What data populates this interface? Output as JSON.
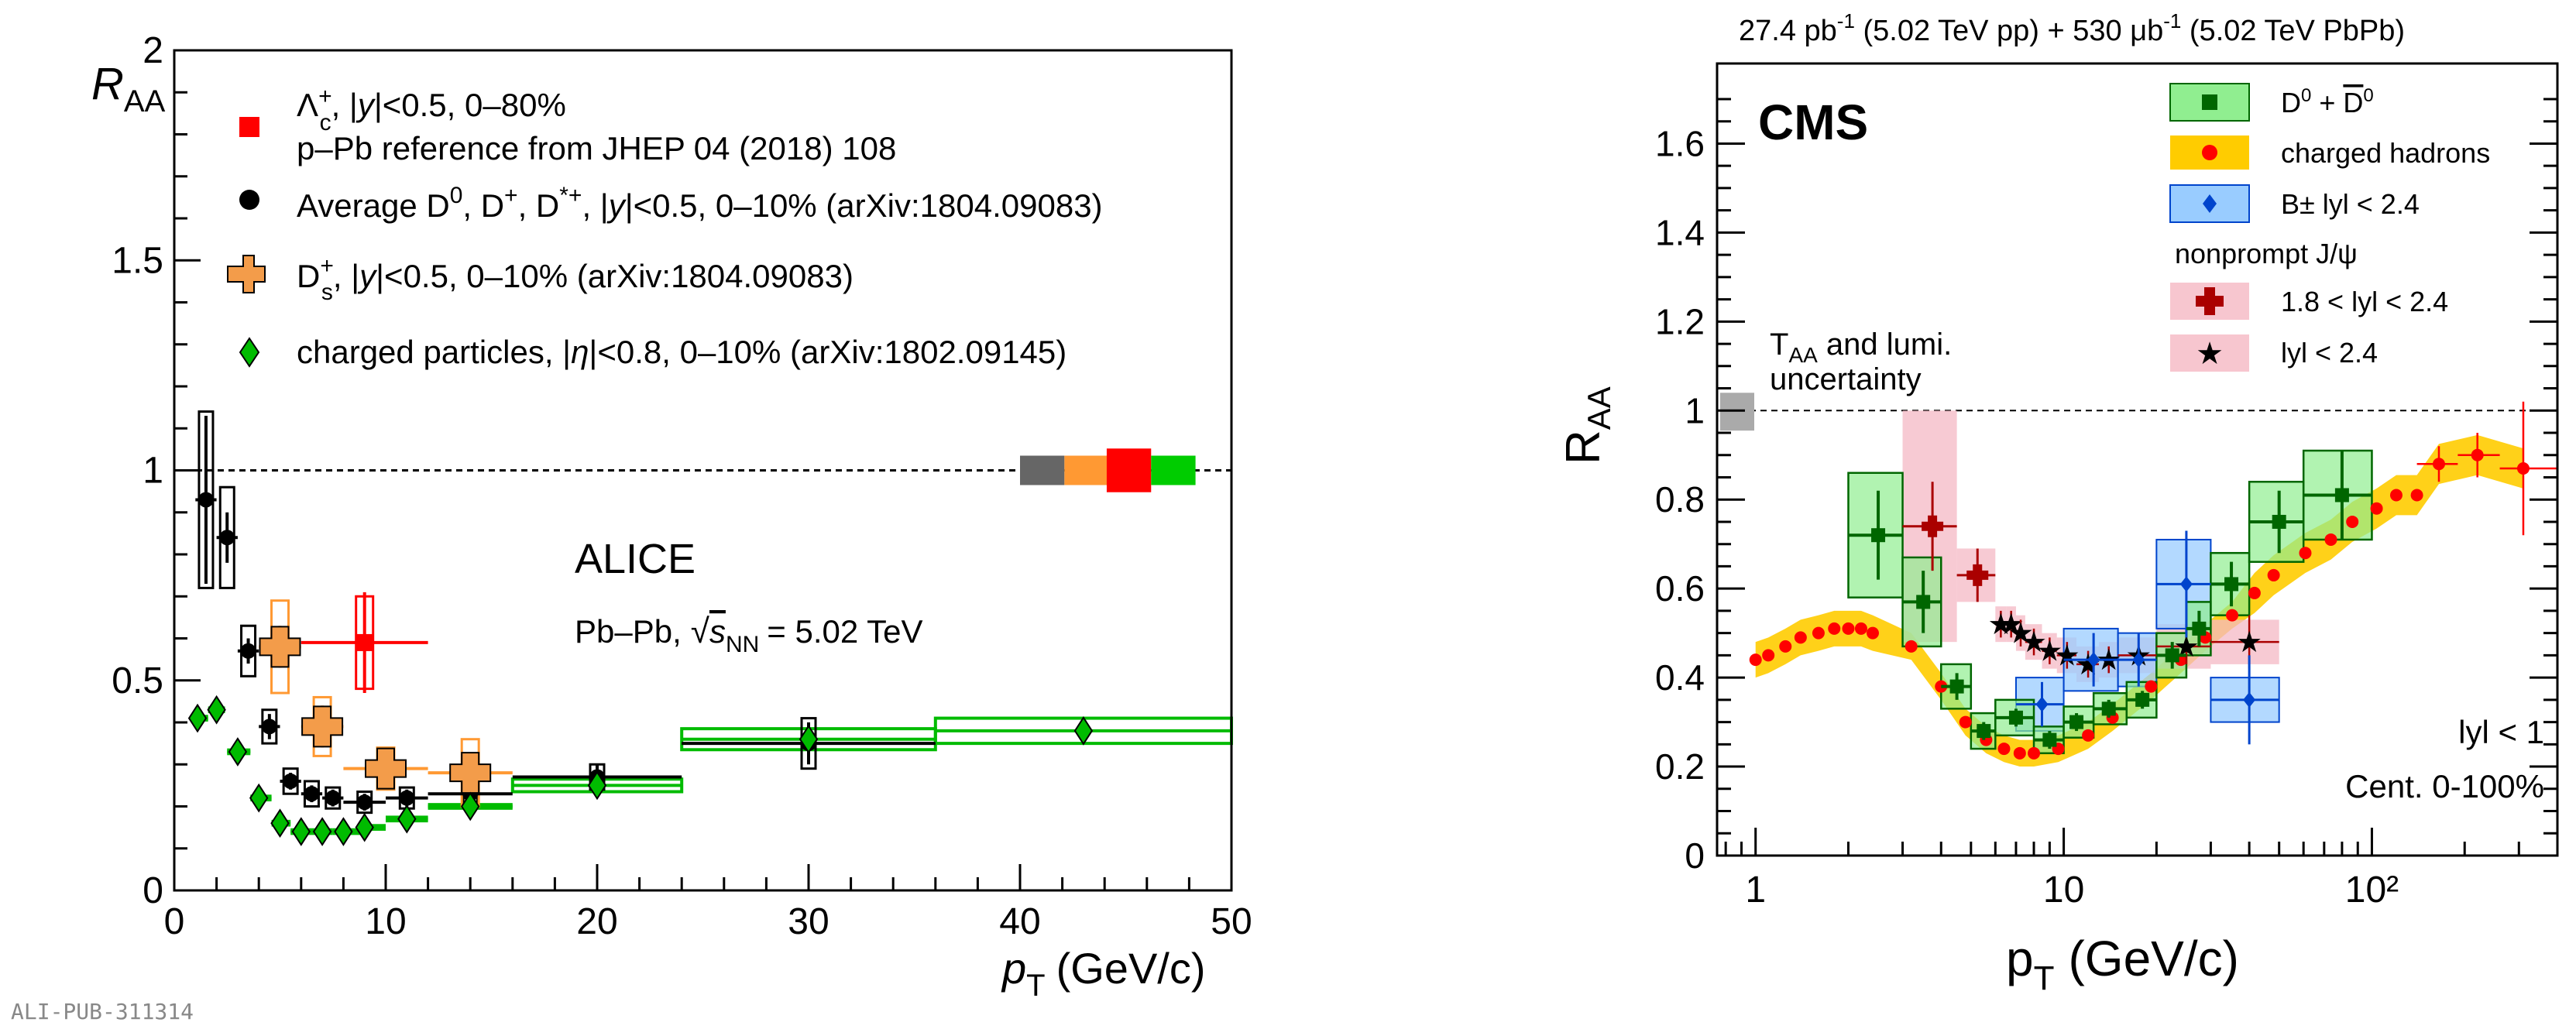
{
  "figure_note": "ALI-PUB-311314",
  "chart_data": [
    {
      "type": "scatter",
      "experiment": "ALICE",
      "system": "Pb–Pb,",
      "energy_prefix": "s",
      "energy_sub": "NN",
      "energy_suffix": "= 5.02 TeV",
      "xlabel": "p",
      "xlabel_sub": "T",
      "xlabel_unit": "(GeV/c)",
      "ylabel": "R",
      "ylabel_sub": "AA",
      "xlim": [
        0,
        50
      ],
      "ylim": [
        0,
        2
      ],
      "xticks": [
        "0",
        "10",
        "20",
        "30",
        "40",
        "50"
      ],
      "yticks": [
        "0",
        "0.5",
        "1",
        "1.5",
        "2"
      ],
      "reference_line": 1,
      "norm_boxes": [
        "#666666",
        "#ff9933",
        "#ff0000",
        "#00cc00"
      ],
      "legend": [
        {
          "marker": "red-square",
          "text": "Λc+, |y|<0.5, 0–80%",
          "text2": "p–Pb reference from JHEP 04 (2018) 108"
        },
        {
          "marker": "black-circle",
          "text": "Average D0, D+, D*+, |y|<0.5, 0–10% (arXiv:1804.09083)"
        },
        {
          "marker": "orange-cross",
          "text": "Ds+, |y|<0.5, 0–10% (arXiv:1804.09083)"
        },
        {
          "marker": "green-diamond",
          "text": "charged particles, |η|<0.8, 0–10% (arXiv:1802.09145)"
        }
      ],
      "series": [
        {
          "name": "Lambda_c",
          "color": "#ff0000",
          "points": [
            {
              "x": 9.0,
              "y": 0.59,
              "xlo": 6,
              "xhi": 12,
              "stat": 0.12,
              "sys": 0.11
            }
          ]
        },
        {
          "name": "Average D",
          "color": "#000000",
          "points": [
            {
              "x": 1.5,
              "y": 0.93,
              "xlo": 1,
              "xhi": 2,
              "stat": 0.2,
              "sys": 0.21
            },
            {
              "x": 2.5,
              "y": 0.84,
              "xlo": 2,
              "xhi": 3,
              "stat": 0.06,
              "sys": 0.12
            },
            {
              "x": 3.5,
              "y": 0.57,
              "xlo": 3,
              "xhi": 4,
              "stat": 0.03,
              "sys": 0.06
            },
            {
              "x": 4.5,
              "y": 0.39,
              "xlo": 4,
              "xhi": 5,
              "stat": 0.03,
              "sys": 0.04
            },
            {
              "x": 5.5,
              "y": 0.26,
              "xlo": 5,
              "xhi": 6,
              "stat": 0.02,
              "sys": 0.03
            },
            {
              "x": 6.5,
              "y": 0.23,
              "xlo": 6,
              "xhi": 7,
              "stat": 0.02,
              "sys": 0.03
            },
            {
              "x": 7.5,
              "y": 0.22,
              "xlo": 7,
              "xhi": 8,
              "stat": 0.02,
              "sys": 0.025
            },
            {
              "x": 9.0,
              "y": 0.21,
              "xlo": 8,
              "xhi": 10,
              "stat": 0.02,
              "sys": 0.025
            },
            {
              "x": 11.0,
              "y": 0.22,
              "xlo": 10,
              "xhi": 12,
              "stat": 0.02,
              "sys": 0.025
            },
            {
              "x": 14.0,
              "y": 0.23,
              "xlo": 12,
              "xhi": 16,
              "stat": 0.02,
              "sys": 0.025
            },
            {
              "x": 20.0,
              "y": 0.27,
              "xlo": 16,
              "xhi": 24,
              "stat": 0.03,
              "sys": 0.03
            },
            {
              "x": 30.0,
              "y": 0.35,
              "xlo": 24,
              "xhi": 36,
              "stat": 0.05,
              "sys": 0.06
            }
          ]
        },
        {
          "name": "Ds",
          "color": "#ff9933",
          "points": [
            {
              "x": 5.0,
              "y": 0.58,
              "xlo": 4,
              "xhi": 6,
              "stat": 0.05,
              "sys": 0.11
            },
            {
              "x": 7.0,
              "y": 0.39,
              "xlo": 6,
              "xhi": 8,
              "stat": 0.05,
              "sys": 0.07
            },
            {
              "x": 10.0,
              "y": 0.29,
              "xlo": 8,
              "xhi": 12,
              "stat": 0.04,
              "sys": 0.05
            },
            {
              "x": 14.0,
              "y": 0.28,
              "xlo": 12,
              "xhi": 16,
              "stat": 0.04,
              "sys": 0.08
            }
          ]
        },
        {
          "name": "charged",
          "color": "#00bb00",
          "points": [
            {
              "x": 1.1,
              "y": 0.41,
              "xlo": 1.0,
              "xhi": 1.6,
              "stat": 0.005,
              "sys": 0.01
            },
            {
              "x": 2.0,
              "y": 0.43,
              "xlo": 1.6,
              "xhi": 2.4,
              "stat": 0.005,
              "sys": 0.01
            },
            {
              "x": 3.0,
              "y": 0.33,
              "xlo": 2.5,
              "xhi": 3.6,
              "stat": 0.005,
              "sys": 0.01
            },
            {
              "x": 4.0,
              "y": 0.22,
              "xlo": 3.6,
              "xhi": 4.6,
              "stat": 0.005,
              "sys": 0.01
            },
            {
              "x": 5.0,
              "y": 0.16,
              "xlo": 4.6,
              "xhi": 5.5,
              "stat": 0.005,
              "sys": 0.01
            },
            {
              "x": 6.0,
              "y": 0.14,
              "xlo": 5.5,
              "xhi": 6.5,
              "stat": 0.005,
              "sys": 0.01
            },
            {
              "x": 7.0,
              "y": 0.14,
              "xlo": 6.5,
              "xhi": 7.5,
              "stat": 0.005,
              "sys": 0.01
            },
            {
              "x": 8.0,
              "y": 0.14,
              "xlo": 7.5,
              "xhi": 8.8,
              "stat": 0.005,
              "sys": 0.01
            },
            {
              "x": 9.0,
              "y": 0.15,
              "xlo": 8.8,
              "xhi": 10,
              "stat": 0.005,
              "sys": 0.01
            },
            {
              "x": 11.0,
              "y": 0.17,
              "xlo": 10,
              "xhi": 12,
              "stat": 0.005,
              "sys": 0.01
            },
            {
              "x": 14.0,
              "y": 0.2,
              "xlo": 12,
              "xhi": 16,
              "stat": 0.01,
              "sys": 0.015
            },
            {
              "x": 20.0,
              "y": 0.25,
              "xlo": 16,
              "xhi": 24,
              "stat": 0.01,
              "sys": 0.015
            },
            {
              "x": 30.0,
              "y": 0.36,
              "xlo": 24,
              "xhi": 36,
              "stat": 0.02,
              "sys": 0.025
            },
            {
              "x": 43.0,
              "y": 0.38,
              "xlo": 36,
              "xhi": 50,
              "stat": 0.03,
              "sys": 0.03
            }
          ]
        }
      ]
    },
    {
      "type": "scatter",
      "header": "27.4 pb-1 (5.02 TeV pp) + 530 μb-1 (5.02 TeV PbPb)",
      "experiment": "CMS",
      "xlabel": "p",
      "xlabel_sub": "T",
      "xlabel_unit": "(GeV/c)",
      "ylabel": "R",
      "ylabel_sub": "AA",
      "xscale": "log",
      "xlim": [
        0.75,
        400
      ],
      "ylim": [
        0,
        1.78
      ],
      "xticks": [
        "1",
        "10",
        "10²"
      ],
      "yticks": [
        "0",
        "0.2",
        "0.4",
        "0.6",
        "0.8",
        "1",
        "1.2",
        "1.4",
        "1.6"
      ],
      "reference_line": 1,
      "annotation": "TAA and lumi. uncertainty",
      "cut_label": "lyl < 1",
      "centrality_label": "Cent. 0-100%",
      "legend": [
        {
          "marker": "D0",
          "text": "D0 + D̅0"
        },
        {
          "marker": "charged",
          "text": "charged hadrons"
        },
        {
          "marker": "Bpm",
          "text": "B± lyl < 2.4"
        },
        {
          "marker": "header",
          "text": "nonprompt J/ψ"
        },
        {
          "marker": "jpsi-cross",
          "text": "1.8 < lyl < 2.4"
        },
        {
          "marker": "jpsi-star",
          "text": "lyl < 2.4"
        }
      ],
      "series": [
        {
          "name": "D0",
          "color": "#006600",
          "points": [
            {
              "x": 2.5,
              "y": 0.72,
              "xlo": 2,
              "xhi": 3,
              "stat": 0.1,
              "sys": 0.14
            },
            {
              "x": 3.5,
              "y": 0.57,
              "xlo": 3,
              "xhi": 4,
              "stat": 0.07,
              "sys": 0.1
            },
            {
              "x": 4.5,
              "y": 0.38,
              "xlo": 4,
              "xhi": 5,
              "stat": 0.03,
              "sys": 0.05
            },
            {
              "x": 5.5,
              "y": 0.28,
              "xlo": 5,
              "xhi": 6,
              "stat": 0.02,
              "sys": 0.04
            },
            {
              "x": 7.0,
              "y": 0.31,
              "xlo": 6,
              "xhi": 8,
              "stat": 0.02,
              "sys": 0.04
            },
            {
              "x": 9.0,
              "y": 0.26,
              "xlo": 8,
              "xhi": 10,
              "stat": 0.02,
              "sys": 0.03
            },
            {
              "x": 11.0,
              "y": 0.3,
              "xlo": 10,
              "xhi": 12.5,
              "stat": 0.02,
              "sys": 0.035
            },
            {
              "x": 14.0,
              "y": 0.33,
              "xlo": 12.5,
              "xhi": 16,
              "stat": 0.02,
              "sys": 0.035
            },
            {
              "x": 18.0,
              "y": 0.35,
              "xlo": 16,
              "xhi": 20,
              "stat": 0.02,
              "sys": 0.04
            },
            {
              "x": 22.5,
              "y": 0.45,
              "xlo": 20,
              "xhi": 25,
              "stat": 0.03,
              "sys": 0.05
            },
            {
              "x": 27.5,
              "y": 0.51,
              "xlo": 25,
              "xhi": 30,
              "stat": 0.04,
              "sys": 0.06
            },
            {
              "x": 35.0,
              "y": 0.61,
              "xlo": 30,
              "xhi": 40,
              "stat": 0.05,
              "sys": 0.07
            },
            {
              "x": 50.0,
              "y": 0.75,
              "xlo": 40,
              "xhi": 60,
              "stat": 0.07,
              "sys": 0.09
            },
            {
              "x": 80.0,
              "y": 0.81,
              "xlo": 60,
              "xhi": 100,
              "stat": 0.1,
              "sys": 0.1
            }
          ]
        },
        {
          "name": "charged",
          "color": "#ff0000",
          "points": [
            {
              "x": 1.0,
              "y": 0.44
            },
            {
              "x": 1.1,
              "y": 0.45
            },
            {
              "x": 1.25,
              "y": 0.47
            },
            {
              "x": 1.4,
              "y": 0.49
            },
            {
              "x": 1.6,
              "y": 0.5
            },
            {
              "x": 1.8,
              "y": 0.51
            },
            {
              "x": 2.0,
              "y": 0.51
            },
            {
              "x": 2.2,
              "y": 0.51
            },
            {
              "x": 2.4,
              "y": 0.5
            },
            {
              "x": 3.2,
              "y": 0.47
            },
            {
              "x": 4.0,
              "y": 0.38
            },
            {
              "x": 4.8,
              "y": 0.3
            },
            {
              "x": 5.6,
              "y": 0.26
            },
            {
              "x": 6.4,
              "y": 0.24
            },
            {
              "x": 7.2,
              "y": 0.23
            },
            {
              "x": 8.0,
              "y": 0.23
            },
            {
              "x": 9.6,
              "y": 0.24
            },
            {
              "x": 12.0,
              "y": 0.27
            },
            {
              "x": 14.4,
              "y": 0.31
            },
            {
              "x": 19.2,
              "y": 0.38
            },
            {
              "x": 24.0,
              "y": 0.44
            },
            {
              "x": 28.8,
              "y": 0.49
            },
            {
              "x": 35.2,
              "y": 0.54
            },
            {
              "x": 41.6,
              "y": 0.59
            },
            {
              "x": 48.0,
              "y": 0.63
            },
            {
              "x": 60.8,
              "y": 0.68
            },
            {
              "x": 73.6,
              "y": 0.71
            },
            {
              "x": 86.4,
              "y": 0.75
            },
            {
              "x": 103.6,
              "y": 0.78
            },
            {
              "x": 120.0,
              "y": 0.81
            },
            {
              "x": 140.0,
              "y": 0.81
            },
            {
              "x": 165.0,
              "y": 0.88,
              "xlo": 140,
              "xhi": 190,
              "stat": 0.04
            },
            {
              "x": 220.0,
              "y": 0.9,
              "xlo": 190,
              "xhi": 260,
              "stat": 0.05
            },
            {
              "x": 310.0,
              "y": 0.87,
              "xlo": 260,
              "xhi": 400,
              "stat": 0.15
            }
          ]
        },
        {
          "name": "Bpm",
          "color": "#0044cc",
          "points": [
            {
              "x": 8.5,
              "y": 0.34,
              "xlo": 7,
              "xhi": 10,
              "stat": 0.05,
              "sys": 0.06
            },
            {
              "x": 12.5,
              "y": 0.44,
              "xlo": 10,
              "xhi": 15,
              "stat": 0.06,
              "sys": 0.07
            },
            {
              "x": 17.5,
              "y": 0.44,
              "xlo": 15,
              "xhi": 20,
              "stat": 0.06,
              "sys": 0.06
            },
            {
              "x": 25.0,
              "y": 0.61,
              "xlo": 20,
              "xhi": 30,
              "stat": 0.12,
              "sys": 0.1
            },
            {
              "x": 40.0,
              "y": 0.35,
              "xlo": 30,
              "xhi": 50,
              "stat": 0.1,
              "sys": 0.05
            }
          ]
        },
        {
          "name": "jpsi_fwd",
          "color": "#aa0000",
          "points": [
            {
              "x": 3.75,
              "y": 0.74,
              "xlo": 3,
              "xhi": 4.5,
              "stat": 0.1,
              "sys": 0.26
            },
            {
              "x": 5.25,
              "y": 0.63,
              "xlo": 4.5,
              "xhi": 6,
              "stat": 0.06,
              "sys": 0.06
            }
          ]
        },
        {
          "name": "jpsi_all",
          "color": "#aa0000",
          "points": [
            {
              "x": 6.25,
              "y": 0.52,
              "xlo": 6,
              "xhi": 6.5,
              "stat": 0.03,
              "sys": 0.04
            },
            {
              "x": 6.75,
              "y": 0.52,
              "xlo": 6.5,
              "xhi": 7,
              "stat": 0.03,
              "sys": 0.04
            },
            {
              "x": 7.25,
              "y": 0.5,
              "xlo": 7,
              "xhi": 7.5,
              "stat": 0.03,
              "sys": 0.04
            },
            {
              "x": 8.0,
              "y": 0.48,
              "xlo": 7.5,
              "xhi": 8.5,
              "stat": 0.03,
              "sys": 0.04
            },
            {
              "x": 9.0,
              "y": 0.46,
              "xlo": 8.5,
              "xhi": 9.5,
              "stat": 0.03,
              "sys": 0.04
            },
            {
              "x": 10.25,
              "y": 0.45,
              "xlo": 9.5,
              "xhi": 11,
              "stat": 0.03,
              "sys": 0.04
            },
            {
              "x": 12.0,
              "y": 0.43,
              "xlo": 11,
              "xhi": 13,
              "stat": 0.03,
              "sys": 0.04
            },
            {
              "x": 14.0,
              "y": 0.44,
              "xlo": 13,
              "xhi": 15,
              "stat": 0.03,
              "sys": 0.04
            },
            {
              "x": 17.5,
              "y": 0.45,
              "xlo": 15,
              "xhi": 20,
              "stat": 0.03,
              "sys": 0.04
            },
            {
              "x": 25.0,
              "y": 0.47,
              "xlo": 20,
              "xhi": 30,
              "stat": 0.04,
              "sys": 0.05
            },
            {
              "x": 40.0,
              "y": 0.48,
              "xlo": 30,
              "xhi": 50,
              "stat": 0.06,
              "sys": 0.05
            }
          ]
        }
      ]
    }
  ]
}
